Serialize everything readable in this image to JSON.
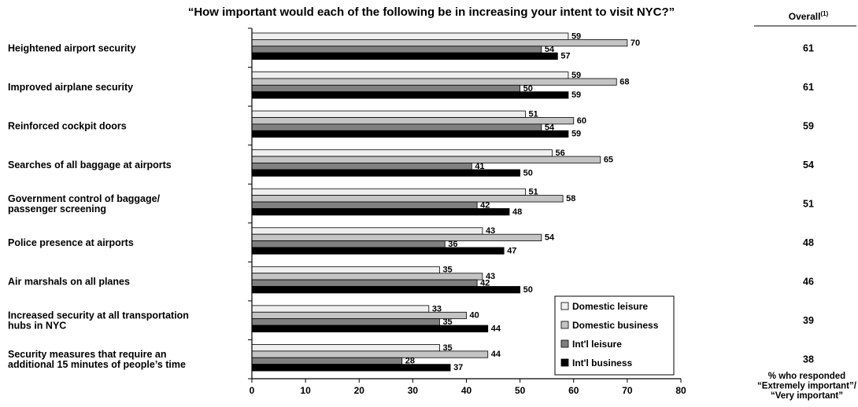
{
  "chart_data": {
    "type": "bar",
    "orientation": "horizontal",
    "title": "“How important would each of the following be in increasing your intent to visit NYC?”",
    "overall_header": "Overall",
    "overall_superscript": "(1)",
    "xlabel_lines": [
      "% who responded",
      "“Extremely important”/",
      "“Very important”"
    ],
    "xlim": [
      0,
      80
    ],
    "xticks": [
      0,
      10,
      20,
      30,
      40,
      50,
      60,
      70,
      80
    ],
    "categories": [
      [
        "Heightened airport security"
      ],
      [
        "Improved airplane security"
      ],
      [
        "Reinforced cockpit doors"
      ],
      [
        "Searches of all baggage at airports"
      ],
      [
        "Government control of baggage/",
        "passenger screening"
      ],
      [
        "Police presence at airports"
      ],
      [
        "Air marshals on all planes"
      ],
      [
        "Increased security at all transportation",
        "hubs in NYC"
      ],
      [
        "Security measures that require an",
        "additional 15 minutes of people’s time"
      ]
    ],
    "series": [
      {
        "name": "Domestic leisure",
        "color": "#efefef",
        "values": [
          59,
          59,
          51,
          56,
          51,
          43,
          35,
          33,
          35
        ]
      },
      {
        "name": "Domestic business",
        "color": "#c4c4c4",
        "values": [
          70,
          68,
          60,
          65,
          58,
          54,
          43,
          40,
          44
        ]
      },
      {
        "name": "Int'l leisure",
        "color": "#808080",
        "values": [
          54,
          50,
          54,
          41,
          42,
          36,
          42,
          35,
          28
        ]
      },
      {
        "name": "Int'l business",
        "color": "#000000",
        "values": [
          57,
          59,
          59,
          50,
          48,
          47,
          50,
          44,
          37
        ]
      }
    ],
    "overall": [
      61,
      61,
      59,
      54,
      51,
      48,
      46,
      39,
      38
    ],
    "legend_position": "lower-right inside plot"
  }
}
